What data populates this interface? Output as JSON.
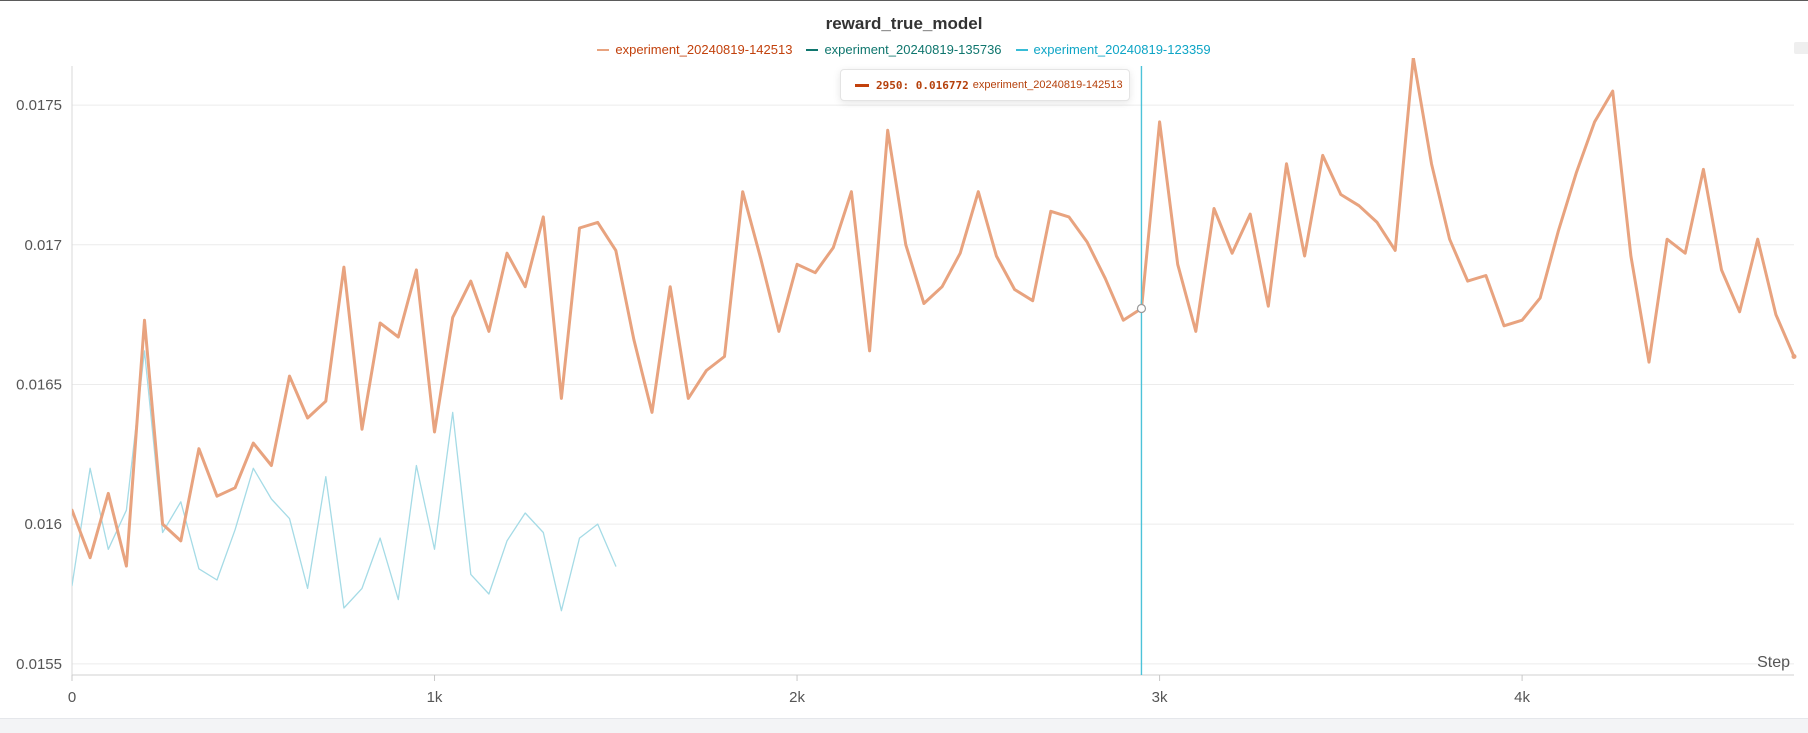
{
  "chart_data": {
    "type": "line",
    "title": "reward_true_model",
    "xlabel": "Step",
    "ylabel": "",
    "xlim": [
      0,
      4750
    ],
    "ylim": [
      0.01546,
      0.01764
    ],
    "x_ticks": [
      {
        "value": 0,
        "label": "0"
      },
      {
        "value": 1000,
        "label": "1k"
      },
      {
        "value": 2000,
        "label": "2k"
      },
      {
        "value": 3000,
        "label": "3k"
      },
      {
        "value": 4000,
        "label": "4k"
      }
    ],
    "y_ticks": [
      {
        "value": 0.0155,
        "label": "0.0155"
      },
      {
        "value": 0.016,
        "label": "0.016"
      },
      {
        "value": 0.0165,
        "label": "0.0165"
      },
      {
        "value": 0.017,
        "label": "0.017"
      },
      {
        "value": 0.0175,
        "label": "0.0175"
      }
    ],
    "grid": true,
    "legend_position": "top-center",
    "series": [
      {
        "name": "experiment_20240819-142513",
        "color": "#e8a37f",
        "legend_color": "#c2410c",
        "stroke": "thick",
        "x": [
          0,
          50,
          100,
          150,
          200,
          250,
          300,
          350,
          400,
          450,
          500,
          550,
          600,
          650,
          700,
          750,
          800,
          850,
          900,
          950,
          1000,
          1050,
          1100,
          1150,
          1200,
          1250,
          1300,
          1350,
          1400,
          1450,
          1500,
          1550,
          1600,
          1650,
          1700,
          1750,
          1800,
          1850,
          1900,
          1950,
          2000,
          2050,
          2100,
          2150,
          2200,
          2250,
          2300,
          2350,
          2400,
          2450,
          2500,
          2550,
          2600,
          2650,
          2700,
          2750,
          2800,
          2850,
          2900,
          2950,
          3000,
          3050,
          3100,
          3150,
          3200,
          3250,
          3300,
          3350,
          3400,
          3450,
          3500,
          3550,
          3600,
          3650,
          3700,
          3750,
          3800,
          3850,
          3900,
          3950,
          4000,
          4050,
          4100,
          4150,
          4200,
          4250,
          4300,
          4350,
          4400,
          4450,
          4500,
          4550,
          4600,
          4650,
          4700,
          4750
        ],
        "y": [
          0.01605,
          0.01588,
          0.01611,
          0.01585,
          0.01673,
          0.016,
          0.01594,
          0.01627,
          0.0161,
          0.01613,
          0.01629,
          0.01621,
          0.01653,
          0.01638,
          0.01644,
          0.01692,
          0.01634,
          0.01672,
          0.01667,
          0.01691,
          0.01633,
          0.01674,
          0.01687,
          0.01669,
          0.01697,
          0.01685,
          0.0171,
          0.01645,
          0.01706,
          0.01708,
          0.01698,
          0.01666,
          0.0164,
          0.01685,
          0.01645,
          0.01655,
          0.0166,
          0.01719,
          0.01695,
          0.01669,
          0.01693,
          0.0169,
          0.01699,
          0.01719,
          0.01662,
          0.01741,
          0.017,
          0.01679,
          0.01685,
          0.01697,
          0.01719,
          0.01696,
          0.01684,
          0.0168,
          0.01712,
          0.0171,
          0.01701,
          0.01688,
          0.01673,
          0.016772,
          0.01744,
          0.01693,
          0.01669,
          0.01713,
          0.01697,
          0.01711,
          0.01678,
          0.01729,
          0.01696,
          0.01732,
          0.01718,
          0.01714,
          0.01708,
          0.01698,
          0.01767,
          0.01729,
          0.01702,
          0.01687,
          0.01689,
          0.01671,
          0.01673,
          0.01681,
          0.01705,
          0.01726,
          0.01744,
          0.01755,
          0.01696,
          0.01658,
          0.01702,
          0.01697,
          0.01727,
          0.01691,
          0.01676,
          0.01702,
          0.01675,
          0.0166
        ]
      },
      {
        "name": "experiment_20240819-135736",
        "color": "#0f766e",
        "legend_color": "#0f766e",
        "stroke": "thin",
        "x": [],
        "y": []
      },
      {
        "name": "experiment_20240819-123359",
        "color": "#a5dbe6",
        "legend_color": "#0ea5c6",
        "stroke": "thin",
        "x": [
          0,
          50,
          100,
          150,
          200,
          250,
          300,
          350,
          400,
          450,
          500,
          550,
          600,
          650,
          700,
          750,
          800,
          850,
          900,
          950,
          1000,
          1050,
          1100,
          1150,
          1200,
          1250,
          1300,
          1350,
          1400,
          1450,
          1500
        ],
        "y": [
          0.01578,
          0.0162,
          0.01591,
          0.01605,
          0.01662,
          0.01597,
          0.01608,
          0.01584,
          0.0158,
          0.01598,
          0.0162,
          0.01609,
          0.01602,
          0.01577,
          0.01617,
          0.0157,
          0.01577,
          0.01595,
          0.01573,
          0.01621,
          0.01591,
          0.0164,
          0.01582,
          0.01575,
          0.01594,
          0.01604,
          0.01597,
          0.01569,
          0.01595,
          0.016,
          0.01585
        ]
      }
    ],
    "hover": {
      "step": 2950,
      "value": 0.016772,
      "series_name": "experiment_20240819-142513"
    }
  },
  "tooltip": {
    "value_text": "2950: 0.016772",
    "series_name": "experiment_20240819-142513"
  }
}
